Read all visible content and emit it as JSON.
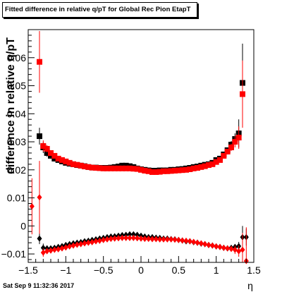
{
  "title": "Fitted difference in relative q/pT for Global Rec Pion EtapT",
  "timestamp": "Sat Sep  9 11:32:36 2017",
  "chart_data": {
    "type": "scatter",
    "title": "Fitted difference in relative q/pT for Global Rec Pion EtapT",
    "xlabel": "η",
    "ylabel": "difference in relative q/pT",
    "xlim": [
      -1.5,
      1.5
    ],
    "ylim": [
      -0.013,
      0.07
    ],
    "xticks": [
      "−1.5",
      "−1",
      "−0.5",
      "0",
      "0.5",
      "1",
      "1.5"
    ],
    "yticks": [
      "−0.01",
      "0",
      "0.01",
      "0.02",
      "0.03",
      "0.04",
      "0.05",
      "0.06"
    ],
    "grid": false,
    "colors": {
      "red": "#ff0000",
      "black": "#000000"
    },
    "series": [
      {
        "marker": "square",
        "color": "#000000",
        "x": [
          -1.35,
          -1.3,
          -1.25,
          -1.2,
          -1.15,
          -1.1,
          -1.05,
          -1.0,
          -0.95,
          -0.9,
          -0.85,
          -0.8,
          -0.75,
          -0.7,
          -0.65,
          -0.6,
          -0.55,
          -0.5,
          -0.45,
          -0.4,
          -0.35,
          -0.3,
          -0.25,
          -0.2,
          -0.15,
          -0.1,
          -0.05,
          0.0,
          0.05,
          0.1,
          0.15,
          0.2,
          0.25,
          0.3,
          0.35,
          0.4,
          0.45,
          0.5,
          0.55,
          0.6,
          0.65,
          0.7,
          0.75,
          0.8,
          0.85,
          0.9,
          0.95,
          1.0,
          1.05,
          1.1,
          1.15,
          1.2,
          1.25,
          1.3,
          1.35
        ],
        "y": [
          0.032,
          0.028,
          0.026,
          0.025,
          0.024,
          0.0235,
          0.023,
          0.0225,
          0.0222,
          0.022,
          0.0217,
          0.0215,
          0.0213,
          0.021,
          0.0208,
          0.0208,
          0.0207,
          0.0207,
          0.0207,
          0.0208,
          0.021,
          0.0212,
          0.0215,
          0.0215,
          0.0213,
          0.021,
          0.0205,
          0.0202,
          0.02,
          0.0198,
          0.0197,
          0.0197,
          0.0198,
          0.0198,
          0.0198,
          0.02,
          0.02,
          0.0202,
          0.0203,
          0.0205,
          0.0207,
          0.021,
          0.0212,
          0.0215,
          0.0218,
          0.022,
          0.0225,
          0.0235,
          0.024,
          0.0255,
          0.027,
          0.029,
          0.031,
          0.033,
          0.051
        ],
        "err": [
          0.003,
          0.002,
          0.0013,
          0.001,
          0.0008,
          0.0007,
          0.0006,
          0.0005,
          0.0005,
          0.0005,
          0.0005,
          0.0005,
          0.0005,
          0.0005,
          0.0005,
          0.0005,
          0.0005,
          0.0005,
          0.0005,
          0.0005,
          0.0005,
          0.0005,
          0.0005,
          0.0005,
          0.0005,
          0.0005,
          0.0005,
          0.0005,
          0.0005,
          0.0005,
          0.0005,
          0.0005,
          0.0005,
          0.0005,
          0.0005,
          0.0005,
          0.0005,
          0.0005,
          0.0005,
          0.0005,
          0.0005,
          0.0005,
          0.0005,
          0.0005,
          0.0005,
          0.0005,
          0.0005,
          0.0006,
          0.0007,
          0.0008,
          0.001,
          0.0013,
          0.002,
          0.005,
          0.014
        ]
      },
      {
        "marker": "square",
        "color": "#ff0000",
        "x": [
          -1.35,
          -1.3,
          -1.25,
          -1.2,
          -1.15,
          -1.1,
          -1.05,
          -1.0,
          -0.95,
          -0.9,
          -0.85,
          -0.8,
          -0.75,
          -0.7,
          -0.65,
          -0.6,
          -0.55,
          -0.5,
          -0.45,
          -0.4,
          -0.35,
          -0.3,
          -0.25,
          -0.2,
          -0.15,
          -0.1,
          -0.05,
          0.0,
          0.05,
          0.1,
          0.15,
          0.2,
          0.25,
          0.3,
          0.35,
          0.4,
          0.45,
          0.5,
          0.55,
          0.6,
          0.65,
          0.7,
          0.75,
          0.8,
          0.85,
          0.9,
          0.95,
          1.0,
          1.05,
          1.1,
          1.15,
          1.2,
          1.25,
          1.3,
          1.35
        ],
        "y": [
          0.0585,
          0.0285,
          0.0275,
          0.026,
          0.025,
          0.024,
          0.0235,
          0.023,
          0.0225,
          0.022,
          0.0218,
          0.0215,
          0.0212,
          0.021,
          0.0208,
          0.0207,
          0.0206,
          0.0205,
          0.0205,
          0.0205,
          0.0205,
          0.0205,
          0.0205,
          0.0205,
          0.0205,
          0.0204,
          0.0203,
          0.02,
          0.0197,
          0.0195,
          0.0192,
          0.0192,
          0.0193,
          0.0195,
          0.0195,
          0.0196,
          0.0197,
          0.0198,
          0.0199,
          0.02,
          0.0202,
          0.0205,
          0.0207,
          0.021,
          0.0213,
          0.0217,
          0.022,
          0.0228,
          0.0235,
          0.025,
          0.0265,
          0.028,
          0.03,
          0.0315,
          0.047
        ],
        "err": [
          0.011,
          0.002,
          0.0013,
          0.001,
          0.0008,
          0.0007,
          0.0006,
          0.0005,
          0.0005,
          0.0005,
          0.0005,
          0.0005,
          0.0005,
          0.0005,
          0.0005,
          0.0005,
          0.0005,
          0.0005,
          0.0005,
          0.0005,
          0.0005,
          0.0005,
          0.0005,
          0.0005,
          0.0005,
          0.0005,
          0.0005,
          0.0005,
          0.0005,
          0.0005,
          0.0005,
          0.0005,
          0.0005,
          0.0005,
          0.0005,
          0.0005,
          0.0005,
          0.0005,
          0.0005,
          0.0005,
          0.0005,
          0.0005,
          0.0005,
          0.0005,
          0.0005,
          0.0005,
          0.0005,
          0.0006,
          0.0007,
          0.0008,
          0.001,
          0.0013,
          0.002,
          0.004,
          0.012
        ]
      },
      {
        "marker": "diamond",
        "color": "#000000",
        "x": [
          -1.35,
          -1.3,
          -1.25,
          -1.2,
          -1.15,
          -1.1,
          -1.05,
          -1.0,
          -0.95,
          -0.9,
          -0.85,
          -0.8,
          -0.75,
          -0.7,
          -0.65,
          -0.6,
          -0.55,
          -0.5,
          -0.45,
          -0.4,
          -0.35,
          -0.3,
          -0.25,
          -0.2,
          -0.15,
          -0.1,
          -0.05,
          0.0,
          0.05,
          0.1,
          0.15,
          0.2,
          0.25,
          0.3,
          0.35,
          0.4,
          0.45,
          0.5,
          0.55,
          0.6,
          0.65,
          0.7,
          0.75,
          0.8,
          0.85,
          0.9,
          0.95,
          1.0,
          1.05,
          1.1,
          1.15,
          1.2,
          1.25,
          1.3,
          1.35,
          1.4
        ],
        "y": [
          -0.0045,
          -0.0078,
          -0.008,
          -0.008,
          -0.0078,
          -0.0075,
          -0.0072,
          -0.0068,
          -0.0065,
          -0.0062,
          -0.006,
          -0.0058,
          -0.0055,
          -0.0053,
          -0.005,
          -0.0048,
          -0.0045,
          -0.0043,
          -0.004,
          -0.0038,
          -0.0037,
          -0.0035,
          -0.0033,
          -0.0032,
          -0.003,
          -0.003,
          -0.0032,
          -0.0035,
          -0.0038,
          -0.004,
          -0.004,
          -0.0042,
          -0.0043,
          -0.0045,
          -0.0045,
          -0.0047,
          -0.0048,
          -0.005,
          -0.0052,
          -0.0055,
          -0.0055,
          -0.0058,
          -0.006,
          -0.0063,
          -0.0065,
          -0.0068,
          -0.007,
          -0.0073,
          -0.0075,
          -0.0078,
          -0.008,
          -0.0078,
          -0.0075,
          -0.0072,
          -0.004,
          -0.004
        ],
        "err": [
          0.002,
          0.0015,
          0.001,
          0.0008,
          0.0007,
          0.0006,
          0.0005,
          0.0005,
          0.0005,
          0.0005,
          0.0005,
          0.0005,
          0.0005,
          0.0005,
          0.0005,
          0.0005,
          0.0005,
          0.0005,
          0.0005,
          0.0005,
          0.0005,
          0.0005,
          0.0005,
          0.0005,
          0.0005,
          0.0005,
          0.0005,
          0.0005,
          0.0005,
          0.0005,
          0.0005,
          0.0005,
          0.0005,
          0.0005,
          0.0005,
          0.0005,
          0.0005,
          0.0005,
          0.0005,
          0.0005,
          0.0005,
          0.0005,
          0.0005,
          0.0005,
          0.0005,
          0.0005,
          0.0005,
          0.0005,
          0.0005,
          0.0006,
          0.0007,
          0.0008,
          0.001,
          0.0015,
          0.004,
          0.003
        ]
      },
      {
        "marker": "diamond",
        "color": "#ff0000",
        "x": [
          -1.45,
          -1.35,
          -1.3,
          -1.25,
          -1.2,
          -1.15,
          -1.1,
          -1.05,
          -1.0,
          -0.95,
          -0.9,
          -0.85,
          -0.8,
          -0.75,
          -0.7,
          -0.65,
          -0.6,
          -0.55,
          -0.5,
          -0.45,
          -0.4,
          -0.35,
          -0.3,
          -0.25,
          -0.2,
          -0.15,
          -0.1,
          -0.05,
          0.0,
          0.05,
          0.1,
          0.15,
          0.2,
          0.25,
          0.3,
          0.35,
          0.4,
          0.45,
          0.5,
          0.55,
          0.6,
          0.65,
          0.7,
          0.75,
          0.8,
          0.85,
          0.9,
          0.95,
          1.0,
          1.05,
          1.1,
          1.15,
          1.2,
          1.25,
          1.3,
          1.35,
          1.4
        ],
        "y": [
          0.007,
          0.0102,
          -0.0095,
          -0.009,
          -0.0088,
          -0.0085,
          -0.0083,
          -0.008,
          -0.0077,
          -0.0073,
          -0.007,
          -0.0067,
          -0.0065,
          -0.0062,
          -0.006,
          -0.0058,
          -0.0055,
          -0.0053,
          -0.005,
          -0.0048,
          -0.0046,
          -0.0045,
          -0.0044,
          -0.0043,
          -0.0043,
          -0.0043,
          -0.0043,
          -0.0044,
          -0.0045,
          -0.0046,
          -0.0046,
          -0.0047,
          -0.0047,
          -0.0048,
          -0.0048,
          -0.0048,
          -0.0048,
          -0.0049,
          -0.005,
          -0.0052,
          -0.0053,
          -0.0055,
          -0.0057,
          -0.006,
          -0.0062,
          -0.0065,
          -0.0068,
          -0.007,
          -0.0073,
          -0.0075,
          -0.0078,
          -0.008,
          -0.0082,
          -0.0085,
          -0.009,
          -0.0085,
          -0.0125
        ],
        "err": [
          0.01,
          0.013,
          0.0015,
          0.001,
          0.0008,
          0.0007,
          0.0006,
          0.0005,
          0.0005,
          0.0005,
          0.0005,
          0.0005,
          0.0005,
          0.0005,
          0.0005,
          0.0005,
          0.0005,
          0.0005,
          0.0005,
          0.0005,
          0.0005,
          0.0005,
          0.0005,
          0.0005,
          0.0005,
          0.0005,
          0.0005,
          0.0005,
          0.0005,
          0.0005,
          0.0005,
          0.0005,
          0.0005,
          0.0005,
          0.0005,
          0.0005,
          0.0005,
          0.0005,
          0.0005,
          0.0005,
          0.0005,
          0.0005,
          0.0005,
          0.0005,
          0.0005,
          0.0005,
          0.0005,
          0.0005,
          0.0005,
          0.0006,
          0.0007,
          0.0008,
          0.001,
          0.0015,
          0.002,
          0.006,
          0.012
        ]
      }
    ]
  }
}
